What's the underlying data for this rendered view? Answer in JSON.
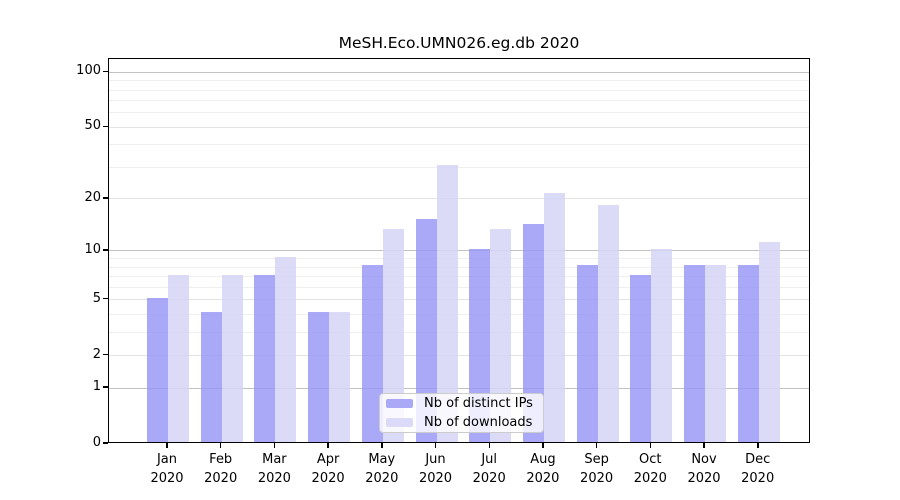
{
  "figure": {
    "title": "MeSH.Eco.UMN026.eg.db 2020"
  },
  "legend": {
    "items": [
      {
        "label": "Nb of distinct IPs"
      },
      {
        "label": "Nb of downloads"
      }
    ]
  },
  "chart_data": {
    "type": "bar",
    "title": "MeSH.Eco.UMN026.eg.db 2020",
    "x": {
      "months": [
        "Jan",
        "Feb",
        "Mar",
        "Apr",
        "May",
        "Jun",
        "Jul",
        "Aug",
        "Sep",
        "Oct",
        "Nov",
        "Dec"
      ],
      "year": "2020"
    },
    "categories": [
      "Jan 2020",
      "Feb 2020",
      "Mar 2020",
      "Apr 2020",
      "May 2020",
      "Jun 2020",
      "Jul 2020",
      "Aug 2020",
      "Sep 2020",
      "Oct 2020",
      "Nov 2020",
      "Dec 2020"
    ],
    "series": [
      {
        "name": "Nb of distinct IPs",
        "key": "distinct-ips",
        "color": "#a9a9f7",
        "fill": "rgba(150,150,246,0.82)",
        "values": [
          5,
          4,
          7,
          4,
          8,
          15,
          10,
          14,
          8,
          7,
          8,
          8
        ]
      },
      {
        "name": "Nb of downloads",
        "key": "downloads",
        "color": "#dbdbf9",
        "fill": "rgba(213,213,247,0.85)",
        "values": [
          7,
          7,
          9,
          4,
          13,
          30,
          13,
          21,
          18,
          10,
          8,
          11
        ]
      }
    ],
    "y_axis": {
      "scale": "log1p",
      "ticks": [
        0,
        1,
        2,
        5,
        10,
        20,
        50,
        100
      ],
      "major_gridlines": [
        1,
        10,
        100
      ],
      "labeled_gridlines": [
        2,
        5,
        20,
        50
      ],
      "minor_gridlines": [
        3,
        4,
        6,
        7,
        8,
        9,
        30,
        40,
        60,
        70,
        80,
        90
      ],
      "ylim": [
        0,
        118
      ]
    },
    "grid": "on",
    "legend_position": "lower-center"
  }
}
